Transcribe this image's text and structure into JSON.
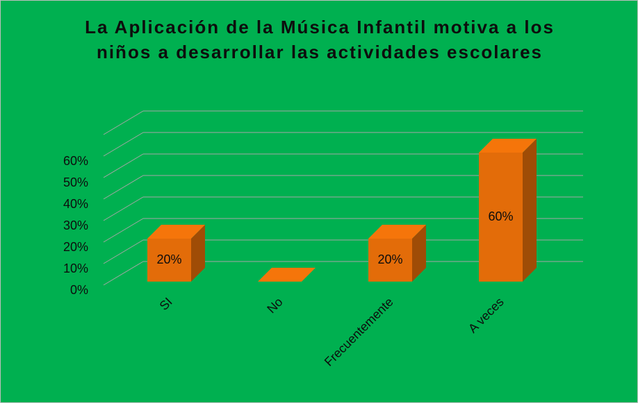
{
  "chart_data": {
    "type": "bar3d",
    "title": "La Aplicación de la Música Infantil motiva a los niños a desarrollar las actividades escolares",
    "categories": [
      "SI",
      "No",
      "Frecuentemente",
      "A veces"
    ],
    "values": [
      20,
      0,
      20,
      60
    ],
    "value_labels": [
      "20%",
      null,
      "20%",
      "60%"
    ],
    "color": "#e36c09",
    "ylim": [
      0,
      70
    ],
    "yticks": [
      {
        "value": 0,
        "label": "0%"
      },
      {
        "value": 10,
        "label": "10%"
      },
      {
        "value": 20,
        "label": "20%"
      },
      {
        "value": 30,
        "label": "30%"
      },
      {
        "value": 40,
        "label": "40%"
      },
      {
        "value": 50,
        "label": "50%"
      },
      {
        "value": 60,
        "label": "60%"
      }
    ],
    "grid": true
  }
}
